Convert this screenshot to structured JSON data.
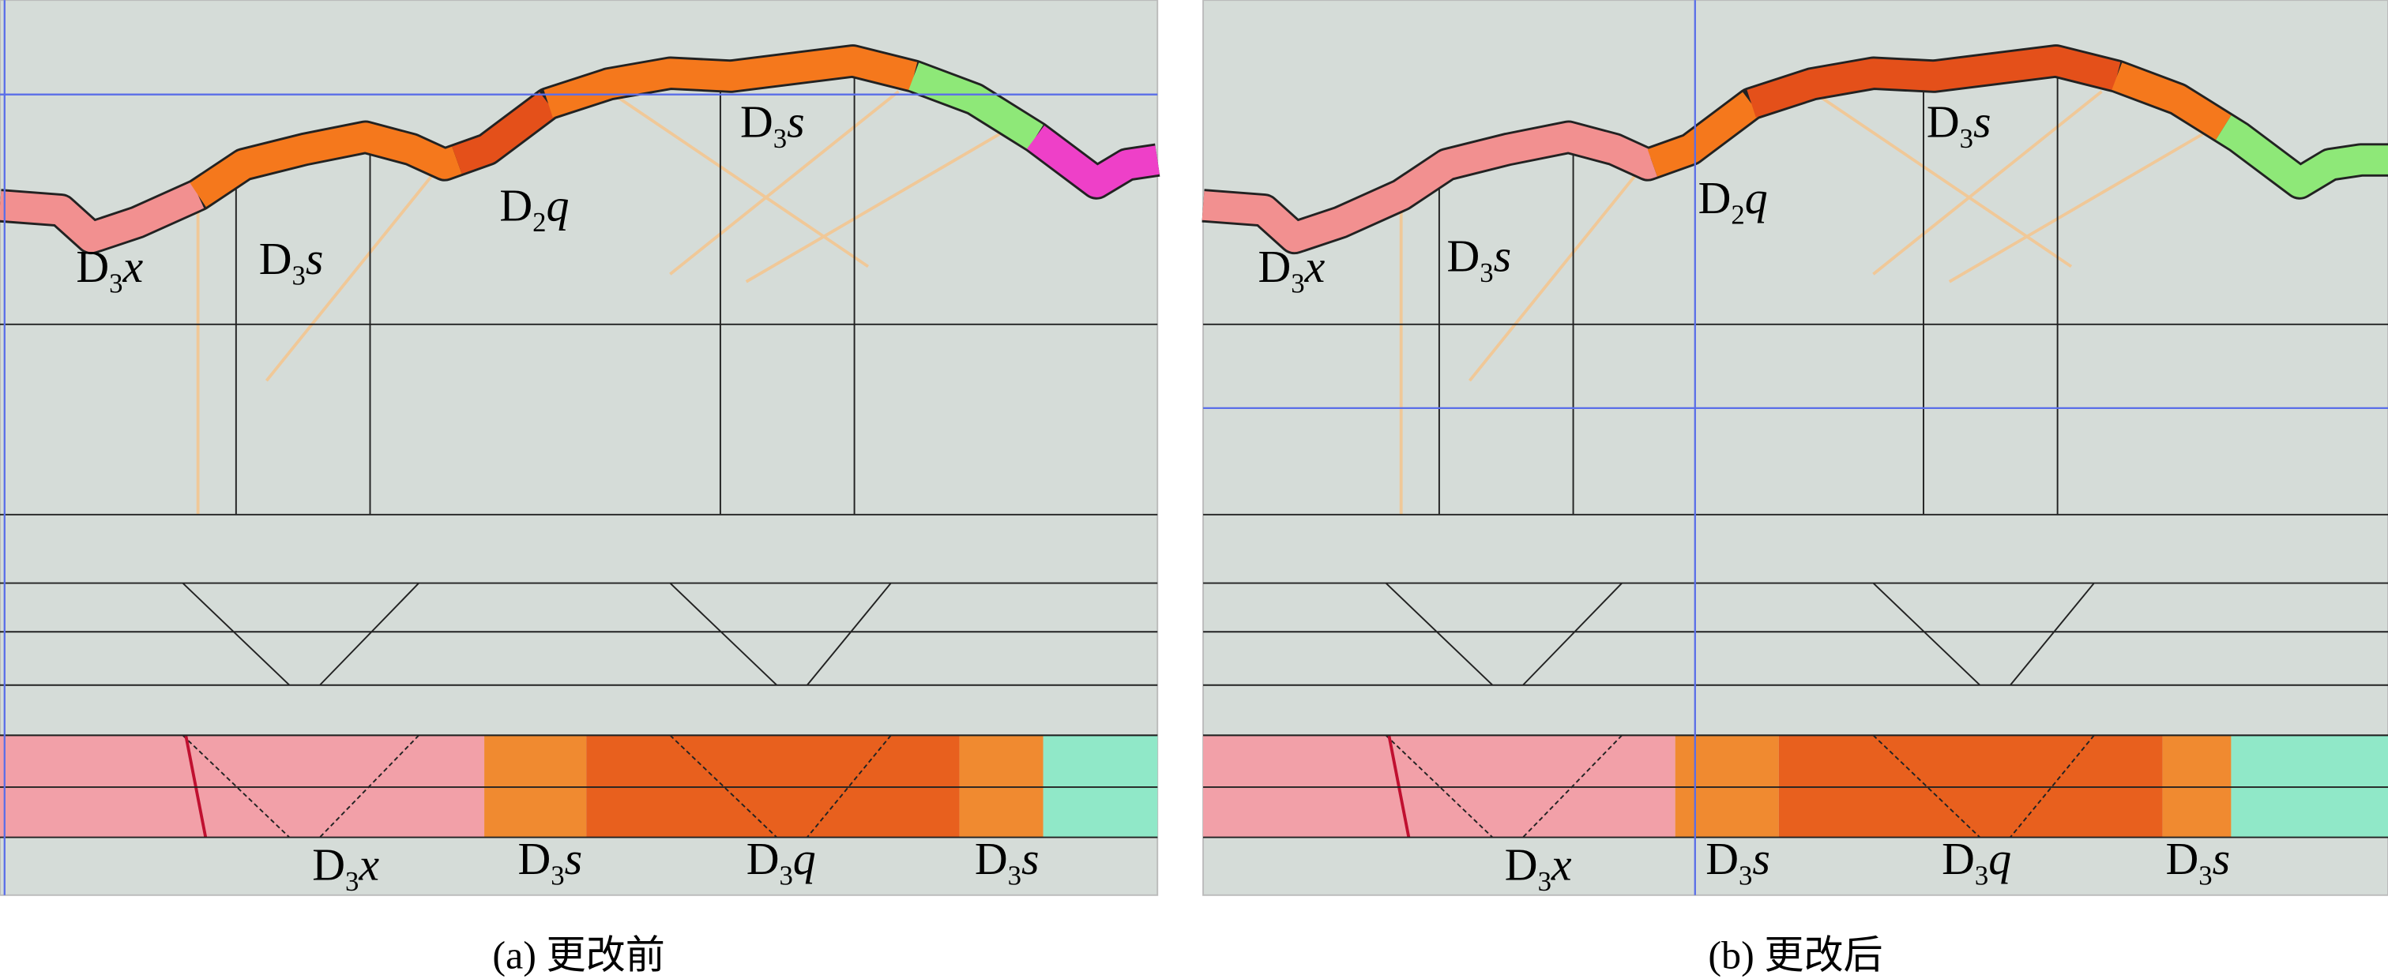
{
  "panels": [
    {
      "caption": "(a) 更改前",
      "labels": [
        {
          "base": "D",
          "sub": "3",
          "tail": "x"
        },
        {
          "base": "D",
          "sub": "3",
          "tail": "s"
        },
        {
          "base": "D",
          "sub": "2",
          "tail": "q"
        },
        {
          "base": "D",
          "sub": "3",
          "tail": "s"
        },
        {
          "base": "D",
          "sub": "3",
          "tail": "x"
        },
        {
          "base": "D",
          "sub": "3",
          "tail": "s"
        },
        {
          "base": "D",
          "sub": "3",
          "tail": "q"
        },
        {
          "base": "D",
          "sub": "3",
          "tail": "s"
        }
      ]
    },
    {
      "caption": "(b) 更改后",
      "labels": [
        {
          "base": "D",
          "sub": "3",
          "tail": "x"
        },
        {
          "base": "D",
          "sub": "3",
          "tail": "s"
        },
        {
          "base": "D",
          "sub": "2",
          "tail": "q"
        },
        {
          "base": "D",
          "sub": "3",
          "tail": "s"
        },
        {
          "base": "D",
          "sub": "3",
          "tail": "x"
        },
        {
          "base": "D",
          "sub": "3",
          "tail": "s"
        },
        {
          "base": "D",
          "sub": "3",
          "tail": "q"
        },
        {
          "base": "D",
          "sub": "3",
          "tail": "s"
        }
      ]
    }
  ]
}
